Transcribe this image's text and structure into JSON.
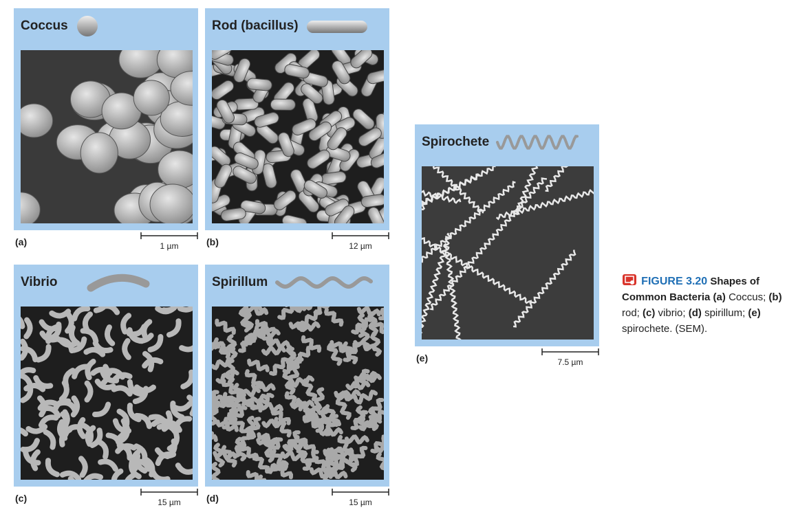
{
  "panels": [
    {
      "title": "Coccus",
      "letter": "(a)",
      "scale": "1 µm"
    },
    {
      "title": "Rod (bacillus)",
      "letter": "(b)",
      "scale": "12 µm"
    },
    {
      "title": "Vibrio",
      "letter": "(c)",
      "scale": "15 µm"
    },
    {
      "title": "Spirillum",
      "letter": "(d)",
      "scale": "15 µm"
    },
    {
      "title": "Spirochete",
      "letter": "(e)",
      "scale": "7.5 µm"
    }
  ],
  "caption": {
    "label": "FIGURE 3.20",
    "title": "Shapes of Common Bacteria",
    "items": [
      {
        "letter": "(a)",
        "text": "Coccus;"
      },
      {
        "letter": "(b)",
        "text": "rod;"
      },
      {
        "letter": "(c)",
        "text": "vibrio;"
      },
      {
        "letter": "(d)",
        "text": "spirillum;"
      },
      {
        "letter": "(e)",
        "text": "spirochete."
      }
    ],
    "note": "(SEM)."
  }
}
